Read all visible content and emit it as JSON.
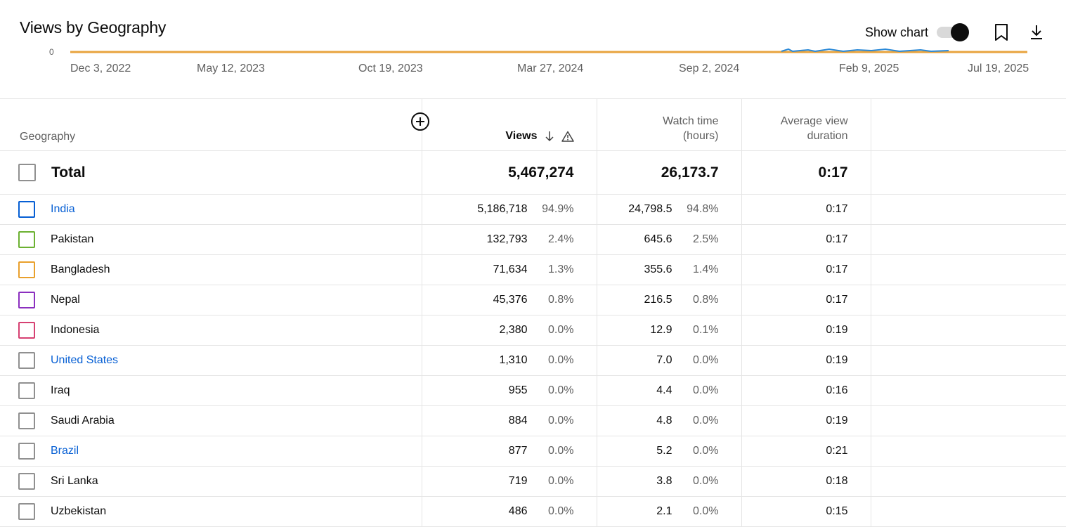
{
  "header": {
    "title": "Views by Geography",
    "show_chart_label": "Show chart",
    "show_chart_on": true,
    "bookmark_icon": "bookmark-icon",
    "download_icon": "download-icon"
  },
  "chart": {
    "y_tick": "0",
    "x_ticks": [
      "Dec 3, 2022",
      "May 12, 2023",
      "Oct 19, 2023",
      "Mar 27, 2024",
      "Sep 2, 2024",
      "Feb 9, 2025",
      "Jul 19, 2025"
    ],
    "line_color": "#e8a33d",
    "accent_color": "#2a89d8"
  },
  "table": {
    "headers": {
      "geography": "Geography",
      "views": "Views",
      "watch_time_line1": "Watch time",
      "watch_time_line2": "(hours)",
      "avg_line1": "Average view",
      "avg_line2": "duration"
    },
    "total": {
      "label": "Total",
      "views": "5,467,274",
      "watch_time": "26,173.7",
      "avg_duration": "0:17"
    },
    "rows": [
      {
        "name": "India",
        "link": true,
        "color": "#065fd4",
        "views": "5,186,718",
        "views_pct": "94.9%",
        "watch": "24,798.5",
        "watch_pct": "94.8%",
        "avg": "0:17"
      },
      {
        "name": "Pakistan",
        "link": false,
        "color": "#6bb131",
        "views": "132,793",
        "views_pct": "2.4%",
        "watch": "645.6",
        "watch_pct": "2.5%",
        "avg": "0:17"
      },
      {
        "name": "Bangladesh",
        "link": false,
        "color": "#e9a02c",
        "views": "71,634",
        "views_pct": "1.3%",
        "watch": "355.6",
        "watch_pct": "1.4%",
        "avg": "0:17"
      },
      {
        "name": "Nepal",
        "link": false,
        "color": "#8b2fbf",
        "views": "45,376",
        "views_pct": "0.8%",
        "watch": "216.5",
        "watch_pct": "0.8%",
        "avg": "0:17"
      },
      {
        "name": "Indonesia",
        "link": false,
        "color": "#d64072",
        "views": "2,380",
        "views_pct": "0.0%",
        "watch": "12.9",
        "watch_pct": "0.1%",
        "avg": "0:19"
      },
      {
        "name": "United States",
        "link": true,
        "color": "#909090",
        "views": "1,310",
        "views_pct": "0.0%",
        "watch": "7.0",
        "watch_pct": "0.0%",
        "avg": "0:19"
      },
      {
        "name": "Iraq",
        "link": false,
        "color": "#909090",
        "views": "955",
        "views_pct": "0.0%",
        "watch": "4.4",
        "watch_pct": "0.0%",
        "avg": "0:16"
      },
      {
        "name": "Saudi Arabia",
        "link": false,
        "color": "#909090",
        "views": "884",
        "views_pct": "0.0%",
        "watch": "4.8",
        "watch_pct": "0.0%",
        "avg": "0:19"
      },
      {
        "name": "Brazil",
        "link": true,
        "color": "#909090",
        "views": "877",
        "views_pct": "0.0%",
        "watch": "5.2",
        "watch_pct": "0.0%",
        "avg": "0:21"
      },
      {
        "name": "Sri Lanka",
        "link": false,
        "color": "#909090",
        "views": "719",
        "views_pct": "0.0%",
        "watch": "3.8",
        "watch_pct": "0.0%",
        "avg": "0:18"
      },
      {
        "name": "Uzbekistan",
        "link": false,
        "color": "#909090",
        "views": "486",
        "views_pct": "0.0%",
        "watch": "2.1",
        "watch_pct": "0.0%",
        "avg": "0:15"
      }
    ]
  }
}
